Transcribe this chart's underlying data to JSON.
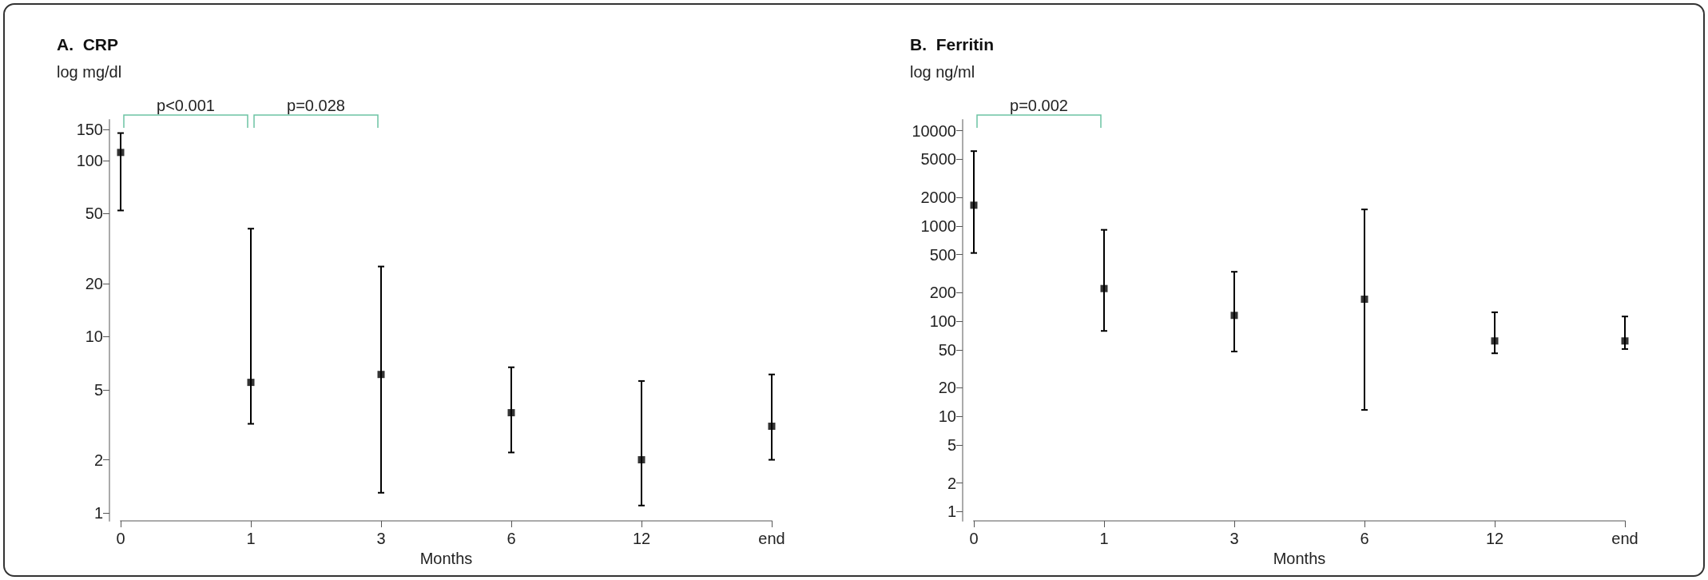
{
  "chart_data": [
    {
      "type": "scatter",
      "title": "A.  CRP",
      "ylabel": "log mg/dl",
      "xlabel": "Months",
      "categories": [
        "0",
        "1",
        "3",
        "6",
        "12",
        "end"
      ],
      "series": [
        {
          "color": "#000000",
          "values": [
            111,
            5.5,
            6.1,
            3.7,
            2.0,
            3.1
          ],
          "errors": [
            [
              52,
              143
            ],
            [
              3.2,
              41
            ],
            [
              1.3,
              25
            ],
            [
              2.2,
              6.7
            ],
            [
              1.1,
              5.6
            ],
            [
              2.0,
              6.1
            ]
          ]
        }
      ],
      "log": "y",
      "ylim": [
        0.9,
        170
      ],
      "yticks": [
        1,
        2,
        5,
        10,
        20,
        50,
        100,
        150
      ],
      "marker": "square",
      "grid": false,
      "annotations": [
        "p<0.001",
        "p=0.028"
      ]
    },
    {
      "type": "scatter",
      "title": "B.  Ferritin",
      "ylabel": "log ng/ml",
      "xlabel": "Months",
      "categories": [
        "0",
        "1",
        "3",
        "6",
        "12",
        "end"
      ],
      "series": [
        {
          "color": "#000000",
          "values": [
            1650,
            220,
            115,
            170,
            62,
            62
          ],
          "errors": [
            [
              520,
              6100
            ],
            [
              79,
              910
            ],
            [
              48,
              330
            ],
            [
              11.7,
              1490
            ],
            [
              46,
              124
            ],
            [
              51,
              112
            ]
          ]
        }
      ],
      "log": "y",
      "ylim": [
        0.8,
        13000
      ],
      "yticks": [
        1,
        2,
        5,
        10,
        20,
        50,
        100,
        200,
        500,
        1000,
        2000,
        5000,
        10000
      ],
      "marker": "square",
      "grid": false,
      "annotations": [
        "p=0.002"
      ]
    }
  ]
}
